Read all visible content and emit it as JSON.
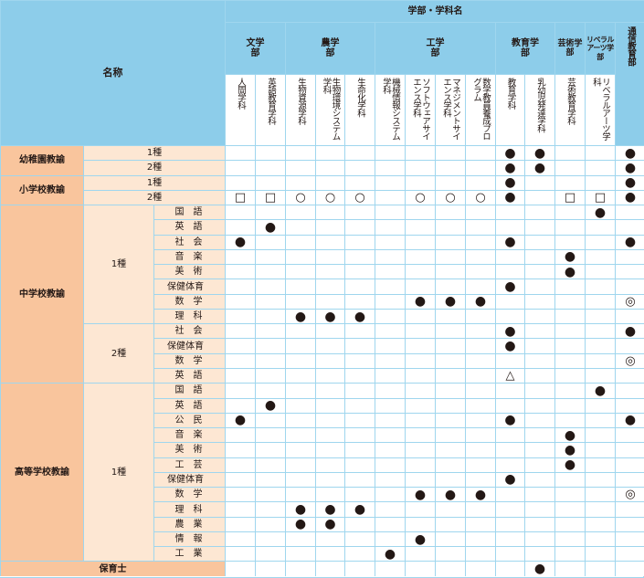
{
  "header": {
    "faculty_title": "学部・学科名",
    "name_label": "名称",
    "faculties": [
      {
        "key": "bun",
        "label_lines": [
          "文学",
          "部"
        ]
      },
      {
        "key": "nou",
        "label_lines": [
          "農学",
          "部"
        ]
      },
      {
        "key": "kou",
        "label_lines": [
          "工学",
          "部"
        ]
      },
      {
        "key": "kyo",
        "label_lines": [
          "教育学",
          "部"
        ]
      },
      {
        "key": "gei",
        "label_lines": [
          "芸術学部"
        ]
      },
      {
        "key": "lib",
        "label_lines": [
          "リベラル",
          "アーツ学部"
        ]
      },
      {
        "key": "tsu",
        "label": "通信教育部"
      }
    ],
    "departments": [
      "人間学科",
      "英語教育学科",
      "生物資源学科",
      "生物環境システム学科",
      "生命化学科",
      "機械情報システム学科",
      "ソフトウェアサイエンス学科",
      "マネジメントサイエンス学科",
      "数学教員養成プログラム",
      "教育学科",
      "乳幼児発達学科",
      "芸術教育学科",
      "リベラルアーツ学科"
    ]
  },
  "categories": {
    "youchien": "幼稚園教諭",
    "shougakkou": "小学校教諭",
    "chuugakkou": "中学校教諭",
    "koutou": "高等学校教諭",
    "hoikushi": "保育士"
  },
  "grades": {
    "g1": "1種",
    "g2": "2種"
  },
  "subjects": {
    "kokugo": "国語",
    "eigo": "英語",
    "shakai": "社会",
    "ongaku": "音楽",
    "bijutsu": "美術",
    "hoken": "保健体育",
    "suugaku": "数学",
    "rika": "理科",
    "koumin": "公民",
    "kougei": "工芸",
    "nougyou": "農業",
    "jouhou": "情報",
    "kougyou": "工業"
  },
  "marks": {
    "filled": "●",
    "square": "□",
    "circle": "○",
    "triangle": "△",
    "double_circle": "◎"
  },
  "rows": [
    {
      "id": "you1",
      "marks": {
        "10": "filled",
        "11": "filled",
        "14": "filled"
      }
    },
    {
      "id": "you2",
      "marks": {
        "10": "filled",
        "11": "filled",
        "14": "filled"
      }
    },
    {
      "id": "sho1",
      "marks": {
        "10": "filled",
        "14": "filled"
      }
    },
    {
      "id": "sho2",
      "marks": {
        "1": "square",
        "2": "square",
        "3": "circle",
        "4": "circle",
        "5": "circle",
        "7": "circle",
        "8": "circle",
        "9": "circle",
        "10": "filled",
        "12": "square",
        "13": "square",
        "14": "filled"
      }
    },
    {
      "id": "c1_kokugo",
      "marks": {
        "13": "filled"
      }
    },
    {
      "id": "c1_eigo",
      "marks": {
        "2": "filled"
      }
    },
    {
      "id": "c1_shakai",
      "marks": {
        "1": "filled",
        "10": "filled",
        "14": "filled"
      }
    },
    {
      "id": "c1_ongaku",
      "marks": {
        "12": "filled"
      }
    },
    {
      "id": "c1_bijutsu",
      "marks": {
        "12": "filled"
      }
    },
    {
      "id": "c1_hoken",
      "marks": {
        "10": "filled"
      }
    },
    {
      "id": "c1_suugaku",
      "marks": {
        "7": "filled",
        "8": "filled",
        "9": "filled",
        "14": "double_circle"
      }
    },
    {
      "id": "c1_rika",
      "marks": {
        "3": "filled",
        "4": "filled",
        "5": "filled"
      }
    },
    {
      "id": "c2_shakai",
      "marks": {
        "10": "filled",
        "14": "filled"
      }
    },
    {
      "id": "c2_hoken",
      "marks": {
        "10": "filled"
      }
    },
    {
      "id": "c2_suugaku",
      "marks": {
        "14": "double_circle"
      }
    },
    {
      "id": "c2_eigo",
      "marks": {
        "10": "triangle"
      }
    },
    {
      "id": "k1_kokugo",
      "marks": {
        "13": "filled"
      }
    },
    {
      "id": "k1_eigo",
      "marks": {
        "2": "filled"
      }
    },
    {
      "id": "k1_koumin",
      "marks": {
        "1": "filled",
        "10": "filled",
        "14": "filled"
      }
    },
    {
      "id": "k1_ongaku",
      "marks": {
        "12": "filled"
      }
    },
    {
      "id": "k1_bijutsu",
      "marks": {
        "12": "filled"
      }
    },
    {
      "id": "k1_kougei",
      "marks": {
        "12": "filled"
      }
    },
    {
      "id": "k1_hoken",
      "marks": {
        "10": "filled"
      }
    },
    {
      "id": "k1_suugaku",
      "marks": {
        "7": "filled",
        "8": "filled",
        "9": "filled",
        "14": "double_circle"
      }
    },
    {
      "id": "k1_rika",
      "marks": {
        "3": "filled",
        "4": "filled",
        "5": "filled"
      }
    },
    {
      "id": "k1_nougyou",
      "marks": {
        "3": "filled",
        "4": "filled"
      }
    },
    {
      "id": "k1_jouhou",
      "marks": {
        "7": "filled"
      }
    },
    {
      "id": "k1_kougyou",
      "marks": {
        "6": "filled"
      }
    },
    {
      "id": "hoikushi",
      "marks": {
        "11": "filled"
      }
    }
  ]
}
